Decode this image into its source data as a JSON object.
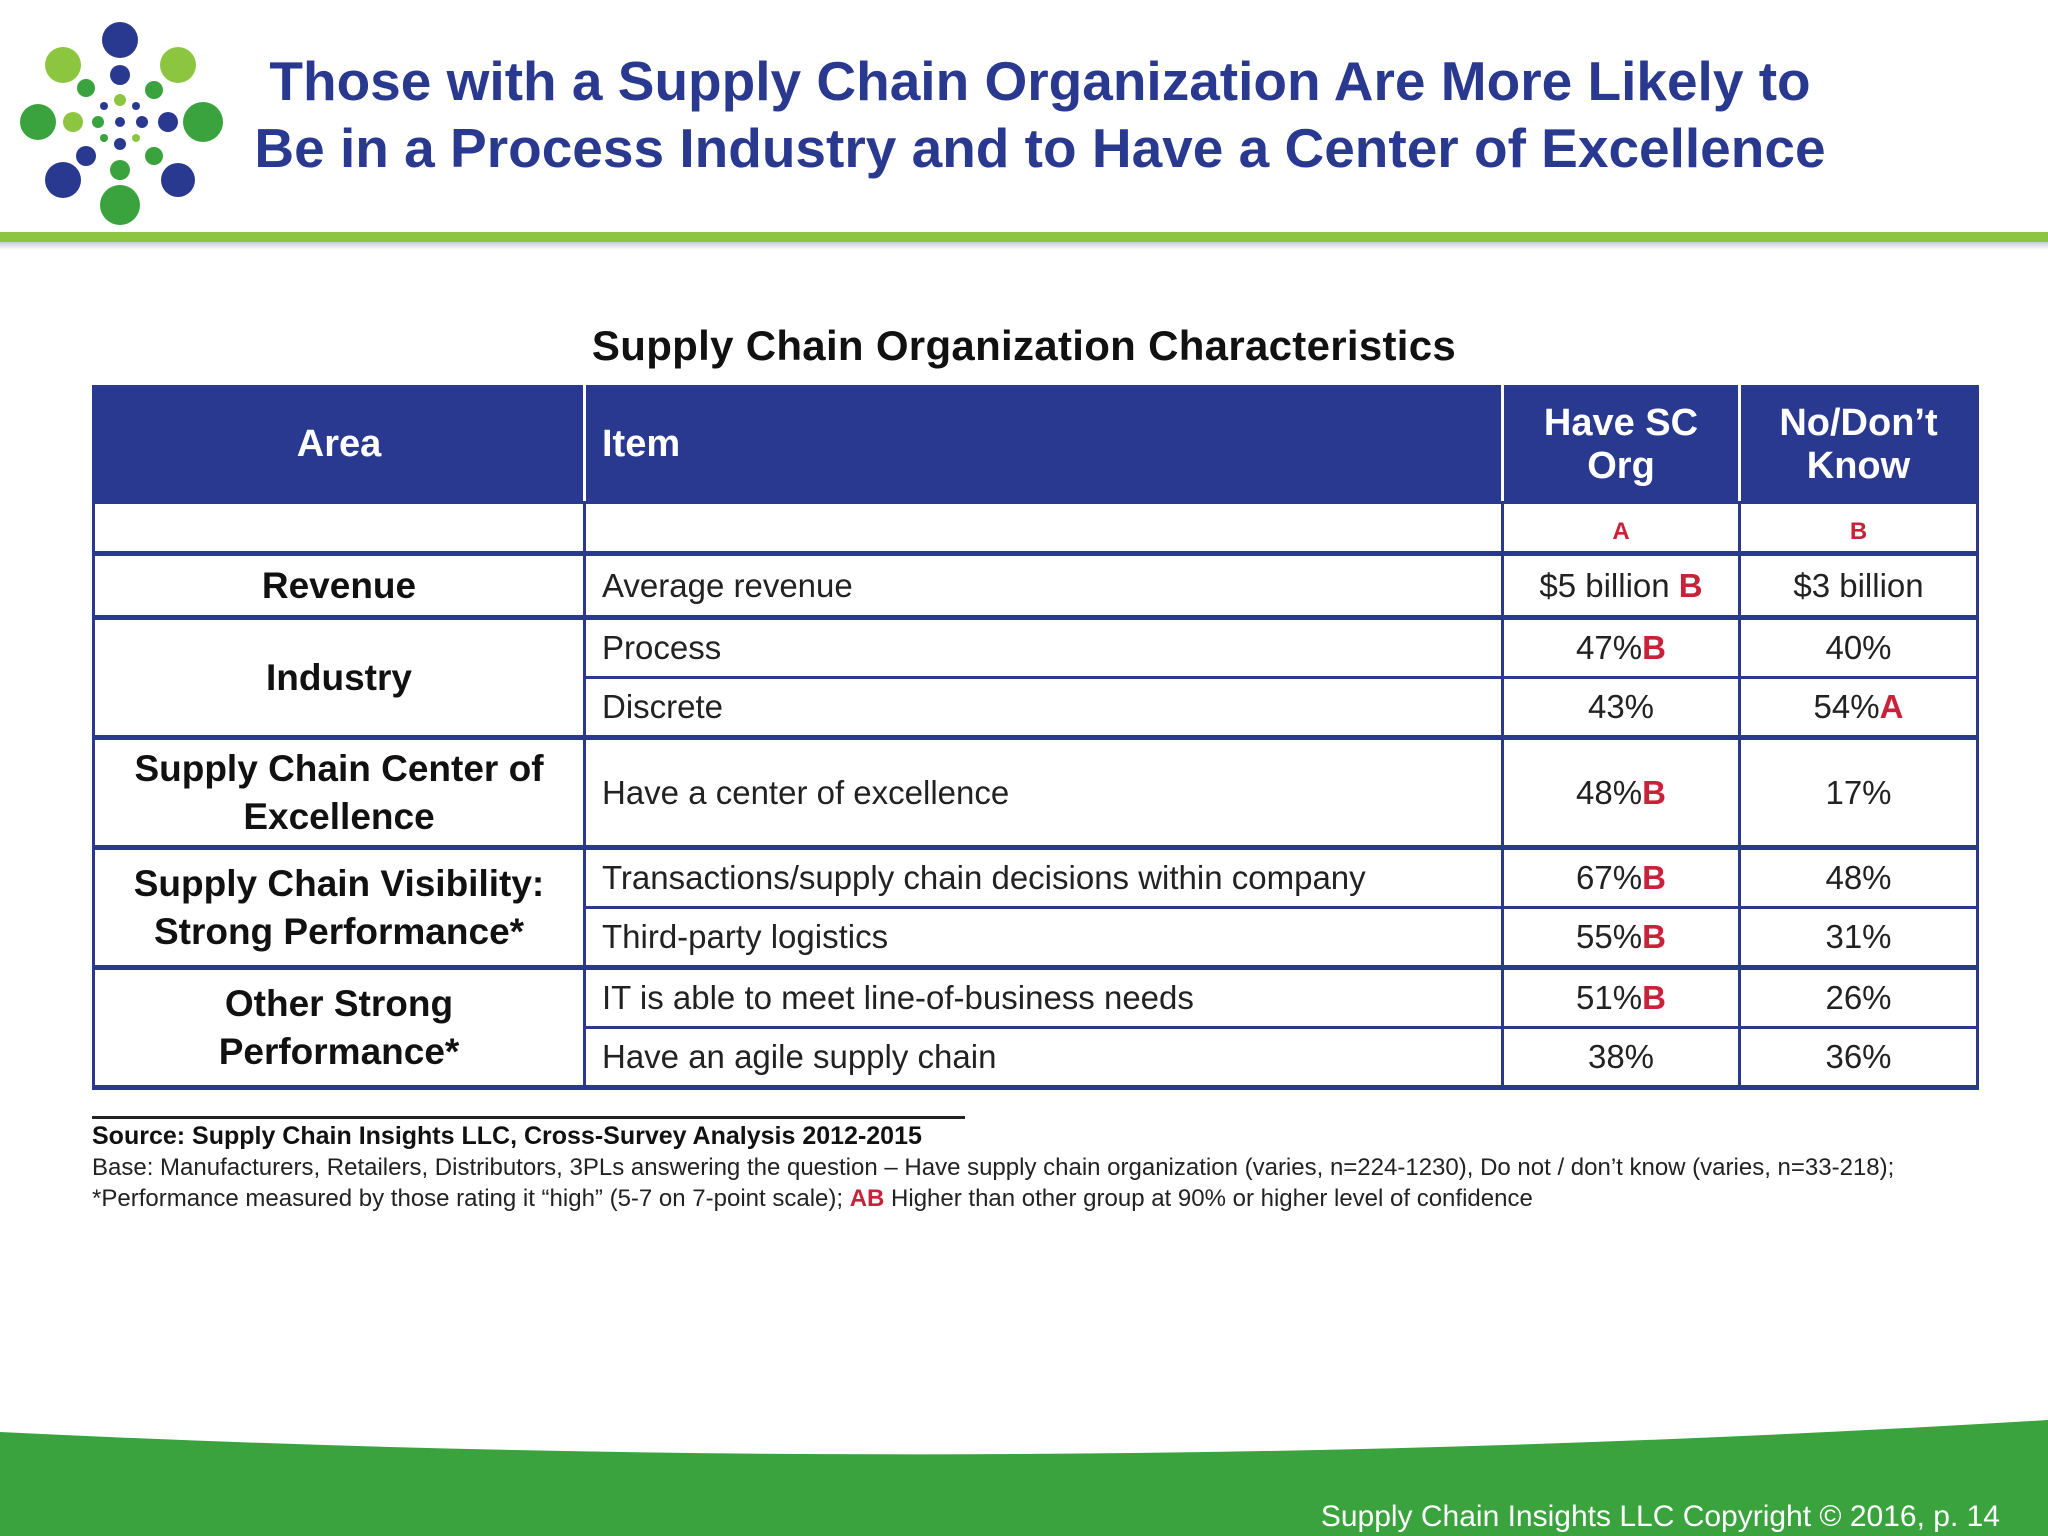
{
  "header": {
    "title_line1": "Those with a Supply Chain Organization Are More Likely to",
    "title_line2": "Be in a Process Industry and to Have a Center of Excellence"
  },
  "table": {
    "title": "Supply Chain Organization Characteristics",
    "headers": {
      "area": "Area",
      "item": "Item",
      "have_sc_line1": "Have SC",
      "have_sc_line2": "Org",
      "no_line1": "No/Don’t",
      "no_line2": "Know"
    },
    "group_letters": {
      "a": "A",
      "b": "B"
    },
    "groups": [
      {
        "area_line1": "Revenue",
        "area_line2": "",
        "rows": [
          {
            "item": "Average revenue",
            "have": "$5 billion ",
            "have_sig": "B",
            "no": "$3 billion",
            "no_sig": ""
          }
        ]
      },
      {
        "area_line1": "Industry",
        "area_line2": "",
        "rows": [
          {
            "item": "Process",
            "have": "47%",
            "have_sig": "B",
            "no": "40%",
            "no_sig": ""
          },
          {
            "item": "Discrete",
            "have": "43%",
            "have_sig": "",
            "no": "54%",
            "no_sig": "A"
          }
        ]
      },
      {
        "area_line1": "Supply Chain Center of",
        "area_line2": "Excellence",
        "rows": [
          {
            "item": "Have a center of excellence",
            "have": "48%",
            "have_sig": "B",
            "no": "17%",
            "no_sig": ""
          }
        ]
      },
      {
        "area_line1": "Supply Chain Visibility:",
        "area_line2": "Strong Performance*",
        "rows": [
          {
            "item": "Transactions/supply chain decisions within company",
            "have": "67%",
            "have_sig": "B",
            "no": "48%",
            "no_sig": ""
          },
          {
            "item": "Third-party logistics",
            "have": "55%",
            "have_sig": "B",
            "no": "31%",
            "no_sig": ""
          }
        ]
      },
      {
        "area_line1": "Other Strong",
        "area_line2": "Performance*",
        "rows": [
          {
            "item": "IT is able to meet line-of-business needs",
            "have": "51%",
            "have_sig": "B",
            "no": "26%",
            "no_sig": ""
          },
          {
            "item": "Have an agile supply chain",
            "have": "38%",
            "have_sig": "",
            "no": "36%",
            "no_sig": ""
          }
        ]
      }
    ]
  },
  "notes": {
    "source": "Source:  Supply Chain Insights LLC, Cross-Survey Analysis 2012-2015",
    "base_part1": "Base:  Manufacturers,  Retailers, Distributors, 3PLs answering the question – Have supply chain organization (varies, n=224-1230), Do not / don’t know (varies, n=33-218); *Performance measured by those rating it “high” (5-7 on 7-point scale); ",
    "base_ab": "AB",
    "base_part2": " Higher than other group at 90% or higher level of confidence"
  },
  "footer": {
    "text": "Supply Chain Insights LLC Copyright © 2016, p. 14"
  },
  "colors": {
    "brand_blue": "#2a3990",
    "brand_green": "#8cc641",
    "footer_green": "#3aa33e",
    "significance_red": "#c8223a"
  }
}
